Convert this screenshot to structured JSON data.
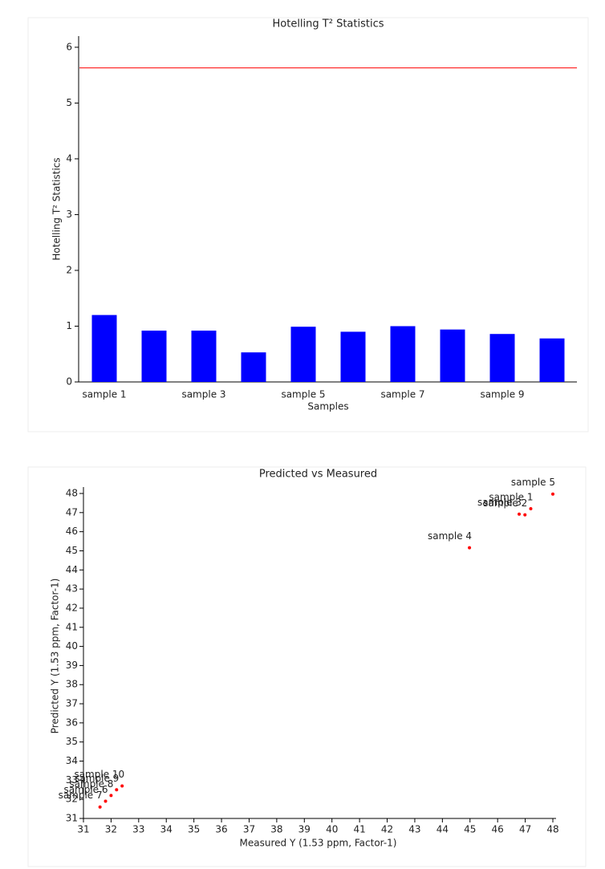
{
  "chart_data": [
    {
      "type": "bar",
      "title": "Hotelling T² Statistics",
      "x_label": "Samples",
      "y_label": "Hotelling T² Statistics",
      "categories": [
        "sample 1",
        null,
        "sample 3",
        null,
        "sample 5",
        null,
        "sample 7",
        null,
        "sample 9",
        null
      ],
      "values": [
        1.2,
        0.92,
        0.92,
        0.53,
        0.99,
        0.9,
        1.0,
        0.94,
        0.86,
        0.78
      ],
      "color": "#0000ff",
      "ylim": [
        0,
        6.2
      ],
      "yticks": [
        0,
        1,
        2,
        3,
        4,
        5,
        6
      ],
      "threshold": 5.63,
      "threshold_color": "#ff0000"
    },
    {
      "type": "scatter",
      "title": "Predicted vs Measured",
      "x_label": "Measured Y (1.53 ppm, Factor-1)",
      "y_label": "Predicted Y (1.53 ppm, Factor-1)",
      "point_labels": [
        "sample 1",
        "sample 2",
        "sample 3",
        "sample 4",
        "sample 5",
        "sample 6",
        "sample 7",
        "sample 8",
        "sample 9",
        "sample 10"
      ],
      "x": [
        47.2,
        46.99,
        46.78,
        44.98,
        48.0,
        31.8,
        31.6,
        32.0,
        32.2,
        32.4
      ],
      "values": [
        47.2,
        46.88,
        46.92,
        45.16,
        47.97,
        31.9,
        31.6,
        32.2,
        32.5,
        32.7
      ],
      "color": "#ff0000",
      "xlim": [
        31,
        48
      ],
      "xticks": [
        31,
        32,
        33,
        34,
        35,
        36,
        37,
        38,
        39,
        40,
        41,
        42,
        43,
        44,
        45,
        46,
        47,
        48
      ],
      "ylim": [
        31,
        48
      ],
      "yticks": [
        31,
        32,
        33,
        34,
        35,
        36,
        37,
        38,
        39,
        40,
        41,
        42,
        43,
        44,
        45,
        46,
        47,
        48
      ]
    }
  ]
}
